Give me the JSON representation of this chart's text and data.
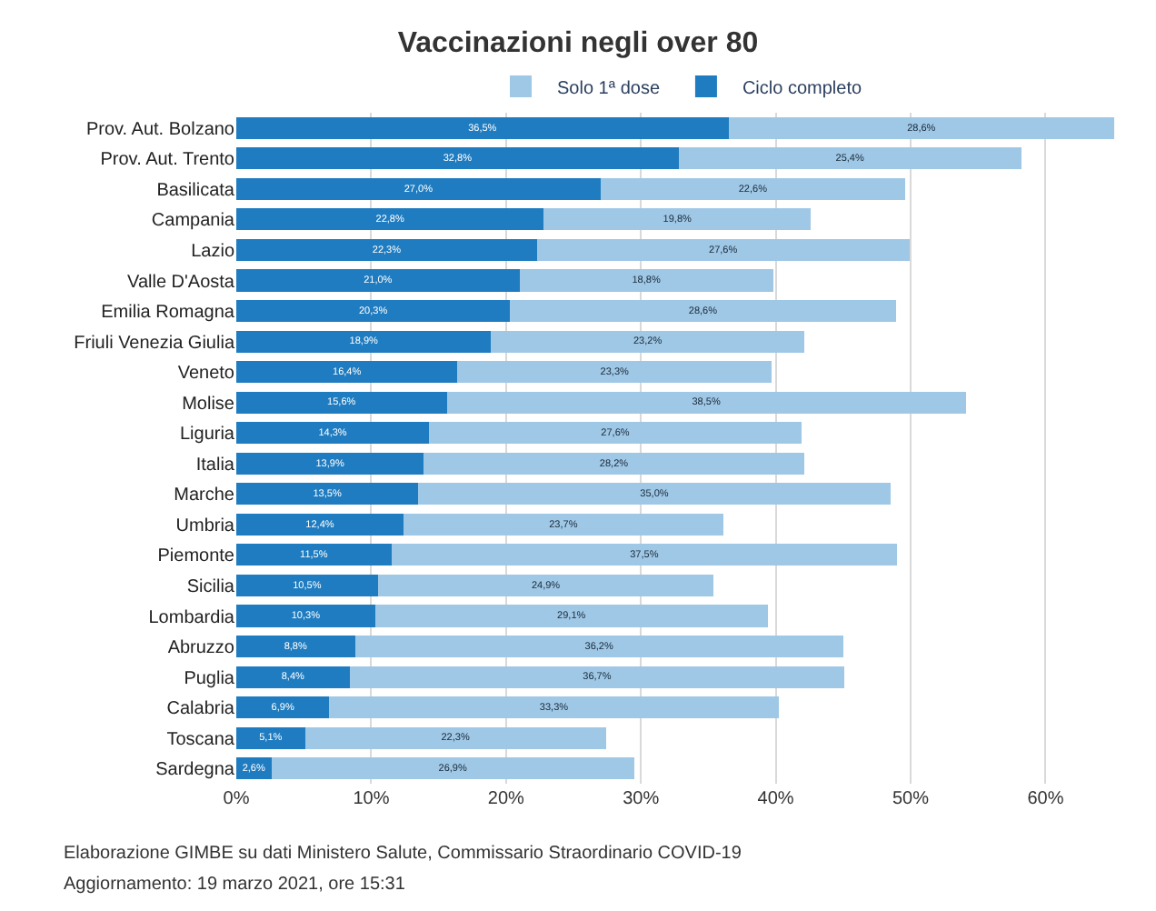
{
  "chart_data": {
    "type": "bar",
    "orientation": "horizontal",
    "stacked": true,
    "title": "Vaccinazioni negli over 80",
    "categories": [
      "Prov. Aut. Bolzano",
      "Prov. Aut. Trento",
      "Basilicata",
      "Campania",
      "Lazio",
      "Valle D'Aosta",
      "Emilia Romagna",
      "Friuli Venezia Giulia",
      "Veneto",
      "Molise",
      "Liguria",
      "Italia",
      "Marche",
      "Umbria",
      "Piemonte",
      "Sicilia",
      "Lombardia",
      "Abruzzo",
      "Puglia",
      "Calabria",
      "Toscana",
      "Sardegna"
    ],
    "series": [
      {
        "name": "Ciclo completo",
        "color": "#1f7cc0",
        "values": [
          36.5,
          32.8,
          27.0,
          22.8,
          22.3,
          21.0,
          20.3,
          18.9,
          16.4,
          15.6,
          14.3,
          13.9,
          13.5,
          12.4,
          11.5,
          10.5,
          10.3,
          8.8,
          8.4,
          6.9,
          5.1,
          2.6
        ],
        "value_labels": [
          "36,5%",
          "32,8%",
          "27,0%",
          "22,8%",
          "22,3%",
          "21,0%",
          "20,3%",
          "18,9%",
          "16,4%",
          "15,6%",
          "14,3%",
          "13,9%",
          "13,5%",
          "12,4%",
          "11,5%",
          "10,5%",
          "10,3%",
          "8,8%",
          "8,4%",
          "6,9%",
          "5,1%",
          "2,6%"
        ]
      },
      {
        "name": "Solo 1ª dose",
        "color": "#9fc8e6",
        "values": [
          28.6,
          25.4,
          22.6,
          19.8,
          27.6,
          18.8,
          28.6,
          23.2,
          23.3,
          38.5,
          27.6,
          28.2,
          35.0,
          23.7,
          37.5,
          24.9,
          29.1,
          36.2,
          36.7,
          33.3,
          22.3,
          26.9
        ],
        "value_labels": [
          "28,6%",
          "25,4%",
          "22,6%",
          "19,8%",
          "27,6%",
          "18,8%",
          "28,6%",
          "23,2%",
          "23,3%",
          "38,5%",
          "27,6%",
          "28,2%",
          "35,0%",
          "23,7%",
          "37,5%",
          "24,9%",
          "29,1%",
          "36,2%",
          "36,7%",
          "33,3%",
          "22,3%",
          "26,9%"
        ]
      }
    ],
    "xlim": [
      0,
      65.5
    ],
    "xticks": [
      {
        "value": 0,
        "label": "0%"
      },
      {
        "value": 10,
        "label": "10%"
      },
      {
        "value": 20,
        "label": "20%"
      },
      {
        "value": 30,
        "label": "30%"
      },
      {
        "value": 40,
        "label": "40%"
      },
      {
        "value": 50,
        "label": "50%"
      },
      {
        "value": 60,
        "label": "60%"
      }
    ],
    "grid": "x",
    "legend": "top",
    "annotations": [
      "Elaborazione GIMBE su dati Ministero Salute, Commissario Straordinario COVID-19",
      "Aggiornamento: 19 marzo 2021, ore 15:31"
    ]
  }
}
